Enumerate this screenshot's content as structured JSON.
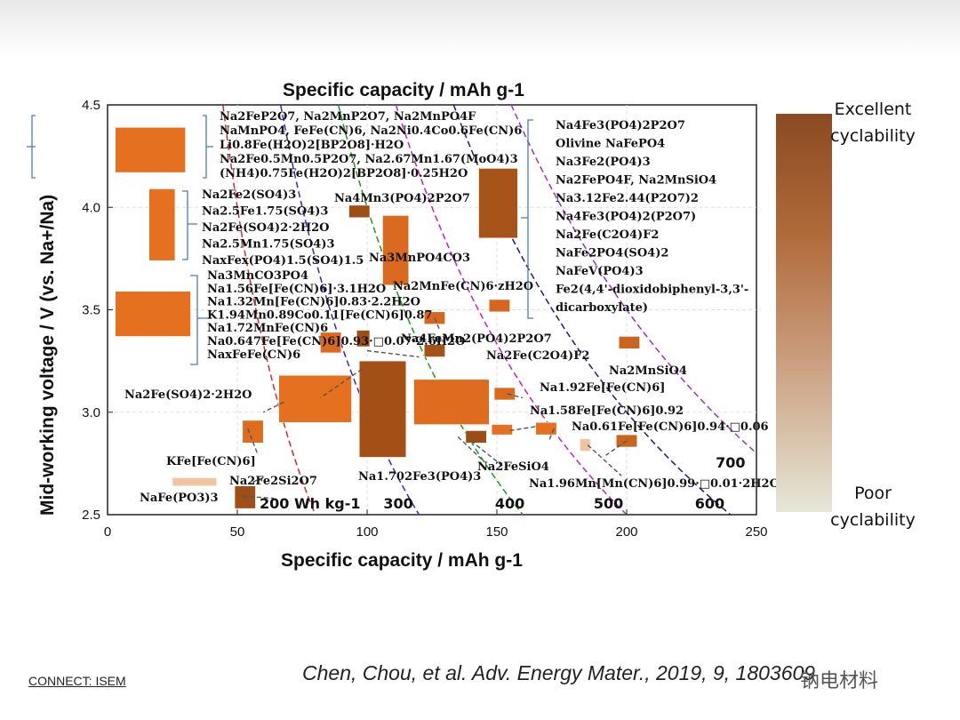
{
  "slide": {
    "footer_left": "CONNECT: ISEM",
    "citation": "Chen, Chou, et al. Adv. Energy Mater., 2019, 9, 1803609",
    "watermark": "钠电材料"
  },
  "legend": {
    "top_label": "Excellent\ncyclability",
    "bottom_label": "Poor\ncyclability",
    "colors": [
      "#8b4a22",
      "#e6e7d8"
    ]
  },
  "chart_data": {
    "type": "scatter",
    "title": "Specific capacity / mAh g-1",
    "xlabel": "Specific capacity / mAh g-1",
    "ylabel": "Mid-working voltage / V (vs. Na+/Na)",
    "xlim": [
      0,
      250
    ],
    "ylim": [
      2.5,
      4.5
    ],
    "xticks": [
      "0",
      "50",
      "100",
      "150",
      "200",
      "250"
    ],
    "yticks": [
      "2.5",
      "3.0",
      "3.5",
      "4.0",
      "4.5"
    ],
    "energy_density_lines": [
      {
        "label": "200 Wh kg-1",
        "value": 200
      },
      {
        "label": "300",
        "value": 300
      },
      {
        "label": "400",
        "value": 400
      },
      {
        "label": "500",
        "value": 500
      },
      {
        "label": "600",
        "value": 600
      },
      {
        "label": "700",
        "value": 700
      }
    ],
    "regions": [
      {
        "x": [
          3,
          30
        ],
        "y": [
          4.17,
          4.39
        ],
        "color": "#e5701f"
      },
      {
        "x": [
          16,
          26
        ],
        "y": [
          3.74,
          4.09
        ],
        "color": "#e5701f"
      },
      {
        "x": [
          3,
          32
        ],
        "y": [
          3.37,
          3.59
        ],
        "color": "#e5701f"
      },
      {
        "x": [
          93,
          101
        ],
        "y": [
          3.95,
          4.01
        ],
        "color": "#9e4e16"
      },
      {
        "x": [
          106,
          116
        ],
        "y": [
          3.62,
          3.96
        ],
        "color": "#d96a1f"
      },
      {
        "x": [
          143,
          158
        ],
        "y": [
          3.85,
          4.19
        ],
        "color": "#a8531a"
      },
      {
        "x": [
          122,
          130
        ],
        "y": [
          3.43,
          3.49
        ],
        "color": "#d46720"
      },
      {
        "x": [
          147,
          155
        ],
        "y": [
          3.49,
          3.55
        ],
        "color": "#d46720"
      },
      {
        "x": [
          82,
          90
        ],
        "y": [
          3.29,
          3.39
        ],
        "color": "#d96a1f"
      },
      {
        "x": [
          96,
          101
        ],
        "y": [
          3.32,
          3.4
        ],
        "color": "#9e4e16"
      },
      {
        "x": [
          122,
          130
        ],
        "y": [
          3.27,
          3.33
        ],
        "color": "#a55218"
      },
      {
        "x": [
          66,
          94
        ],
        "y": [
          2.95,
          3.18
        ],
        "color": "#e5701f"
      },
      {
        "x": [
          97,
          115
        ],
        "y": [
          2.78,
          3.25
        ],
        "color": "#a44f16"
      },
      {
        "x": [
          118,
          147
        ],
        "y": [
          2.94,
          3.16
        ],
        "color": "#de6b1e"
      },
      {
        "x": [
          149,
          157
        ],
        "y": [
          3.06,
          3.12
        ],
        "color": "#d96a1f"
      },
      {
        "x": [
          138,
          146
        ],
        "y": [
          2.85,
          2.91
        ],
        "color": "#9c4c18"
      },
      {
        "x": [
          148,
          156
        ],
        "y": [
          2.89,
          2.94
        ],
        "color": "#e5701f"
      },
      {
        "x": [
          165,
          173
        ],
        "y": [
          2.89,
          2.95
        ],
        "color": "#e5701f"
      },
      {
        "x": [
          182,
          186
        ],
        "y": [
          2.81,
          2.87
        ],
        "color": "#f0c4a0"
      },
      {
        "x": [
          196,
          204
        ],
        "y": [
          2.83,
          2.89
        ],
        "color": "#c8651f"
      },
      {
        "x": [
          197,
          205
        ],
        "y": [
          3.31,
          3.37
        ],
        "color": "#c8651f"
      },
      {
        "x": [
          52,
          60
        ],
        "y": [
          2.85,
          2.96
        ],
        "color": "#de6b1e"
      },
      {
        "x": [
          25,
          42
        ],
        "y": [
          2.64,
          2.68
        ],
        "color": "#f0c4a0"
      },
      {
        "x": [
          49,
          57
        ],
        "y": [
          2.53,
          2.64
        ],
        "color": "#9e4e16"
      }
    ],
    "group_labels": {
      "group_top_left": [
        "Na2FeP2O7, Na2MnP2O7, Na2MnPO4F",
        "NaMnPO4, FeFe(CN)6, Na2Ni0.4Co0.6Fe(CN)6",
        "Li0.8Fe(H2O)2[BP2O8]·H2O",
        "Na2Fe0.5Mn0.5P2O7, Na2.67Mn1.67(MoO4)3",
        "(NH4)0.75Fe(H2O)2[BP2O8]·0.25H2O"
      ],
      "group_mid_left": [
        "Na2Fe2(SO4)3",
        "Na2.5Fe1.75(SO4)3",
        "Na2Fe(SO4)2·2H2O",
        "Na2.5Mn1.75(SO4)3",
        "NaxFex(PO4)1.5(SO4)1.5"
      ],
      "group_low_left": [
        "Na3MnCO3PO4",
        "Na1.56Fe[Fe(CN)6]·3.1H2O",
        "Na1.32Mn[Fe(CN)6]0.83·2.2H2O",
        "K1.94Mn0.89Co0.11[Fe(CN)6]0.87",
        "Na1.72MnFe(CN)6",
        "Na0.647Fe[Fe(CN)6]0.93·□0.07·2.6H2O",
        "NaxFeFe(CN)6"
      ],
      "group_right": [
        "Na4Fe3(PO4)2P2O7",
        "Olivine NaFePO4",
        "Na3Fe2(PO4)3",
        "Na2FePO4F, Na2MnSiO4",
        "Na3.12Fe2.44(P2O7)2",
        "Na4Fe3(PO4)2(P2O7)",
        "Na2Fe(C2O4)F2",
        "NaFe2PO4(SO4)2",
        "NaFeV(PO4)3",
        "Fe2(4,4'-dioxidobiphenyl-3,3'-",
        "dicarboxylate)"
      ]
    },
    "annotations": [
      "Na4Mn3(PO4)2P2O7",
      "Na3MnPO4CO3",
      "Na2MnFe(CN)6·zH2O",
      "Na4FeMn2(PO4)2P2O7",
      "Na2Fe(C2O4)F2",
      "Na2MnSiO4",
      "Na2Fe(SO4)2·2H2O",
      "Na1.92Fe[Fe(CN)6]",
      "Na1.58Fe[Fe(CN)6]0.92",
      "Na0.61Fe[Fe(CN)6]0.94·□0.06",
      "KFe[Fe(CN)6]",
      "Na1.702Fe3(PO4)3",
      "Na2FeSiO4",
      "Na2Fe2Si2O7",
      "NaFe(PO3)3",
      "Na1.96Mn[Mn(CN)6]0.99·□0.01·2H2O"
    ]
  }
}
